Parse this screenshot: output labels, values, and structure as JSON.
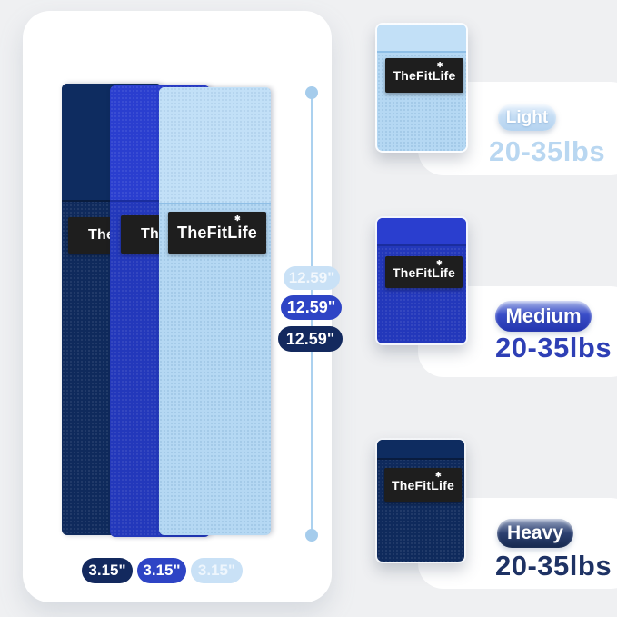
{
  "brand": {
    "name": "TheFitLife",
    "paw_icon": "✱"
  },
  "colors": {
    "background": "#eff0f2",
    "card": "#ffffff",
    "band_heavy": "#0f2a5c",
    "band_medium": "#2338bb",
    "band_light": "#b5d8f3",
    "logo_background": "#1e1e1e",
    "dimension_line": "#abd1ef",
    "pill_heavy": "#13295e",
    "pill_medium": "#2e44c5",
    "pill_light": "#c9e1f6"
  },
  "left_panel": {
    "length_labels": [
      "12.59\"",
      "12.59\"",
      "12.59\""
    ],
    "width_labels": [
      "3.15\"",
      "3.15\"",
      "3.15\""
    ]
  },
  "right_panel": {
    "items": [
      {
        "level": "Light",
        "weight": "20-35lbs"
      },
      {
        "level": "Medium",
        "weight": "20-35lbs"
      },
      {
        "level": "Heavy",
        "weight": "20-35lbs"
      }
    ]
  }
}
